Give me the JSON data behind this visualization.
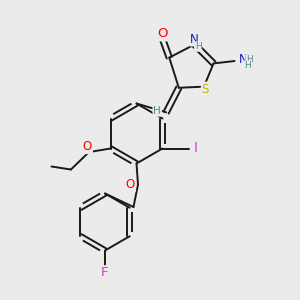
{
  "background_color": "#ebebeb",
  "bond_color": "#1a1a1a",
  "atom_colors": {
    "O": "#ff0000",
    "N": "#1a1acc",
    "S": "#b8b800",
    "I": "#cc44cc",
    "F": "#cc44cc",
    "C": "#1a1a1a",
    "H": "#5a8a8a"
  },
  "font_size": 8.5,
  "figsize": [
    3.0,
    3.0
  ],
  "dpi": 100
}
